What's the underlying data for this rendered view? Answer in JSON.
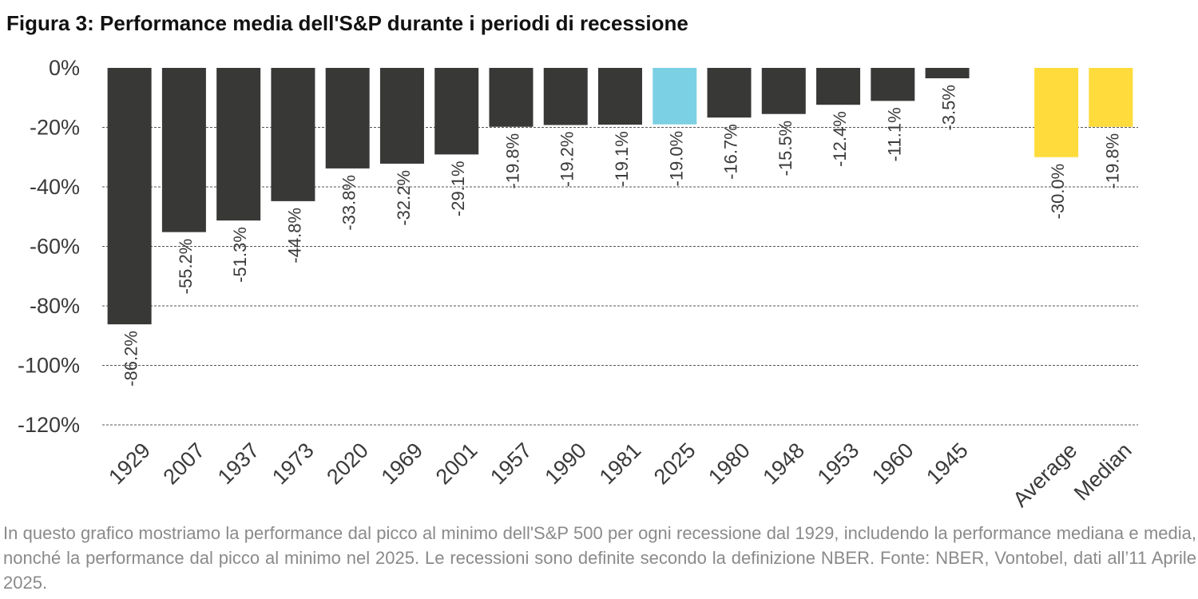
{
  "title": "Figura 3: Performance media dell'S&P durante i periodi di recessione",
  "caption": "In questo grafico mostriamo la performance dal picco al minimo dell'S&P 500 per ogni recessione dal 1929, includendo la performance mediana e media, nonché la performance dal picco al minimo nel 2025. Le recessioni sono definite secondo la definizione NBER. Fonte: NBER, Vontobel, dati all’11 Aprile 2025.",
  "colors": {
    "bar_default": "#383937",
    "bar_highlight": "#7cd0e4",
    "bar_summary": "#ffdc3c",
    "grid": "#555555",
    "text": "#3a3a3a"
  },
  "chart_data": {
    "type": "bar",
    "categories": [
      "1929",
      "2007",
      "1937",
      "1973",
      "2020",
      "1969",
      "2001",
      "1957",
      "1990",
      "1981",
      "2025",
      "1980",
      "1948",
      "1953",
      "1960",
      "1945",
      "",
      "Average",
      "Median"
    ],
    "values": [
      -86.2,
      -55.2,
      -51.3,
      -44.8,
      -33.8,
      -32.2,
      -29.1,
      -19.8,
      -19.2,
      -19.1,
      -19.0,
      -16.7,
      -15.5,
      -12.4,
      -11.1,
      -3.5,
      null,
      -30.0,
      -19.8
    ],
    "data_labels": [
      "-86.2%",
      "-55.2%",
      "-51.3%",
      "-44.8%",
      "-33.8%",
      "-32.2%",
      "-29.1%",
      "-19.8%",
      "-19.2%",
      "-19.1%",
      "-19.0%",
      "-16.7%",
      "-15.5%",
      "-12.4%",
      "-11.1%",
      "-3.5%",
      "",
      "-30.0%",
      "-19.8%"
    ],
    "bar_colors": [
      "default",
      "default",
      "default",
      "default",
      "default",
      "default",
      "default",
      "default",
      "default",
      "default",
      "highlight",
      "default",
      "default",
      "default",
      "default",
      "default",
      "none",
      "summary",
      "summary"
    ],
    "yticks": [
      0,
      -20,
      -40,
      -60,
      -80,
      -100,
      -120
    ],
    "ytick_labels": [
      "0%",
      "-20%",
      "-40%",
      "-60%",
      "-80%",
      "-100%",
      "-120%"
    ],
    "ylim": [
      -120,
      0
    ],
    "grid": "horizontal dashed"
  }
}
